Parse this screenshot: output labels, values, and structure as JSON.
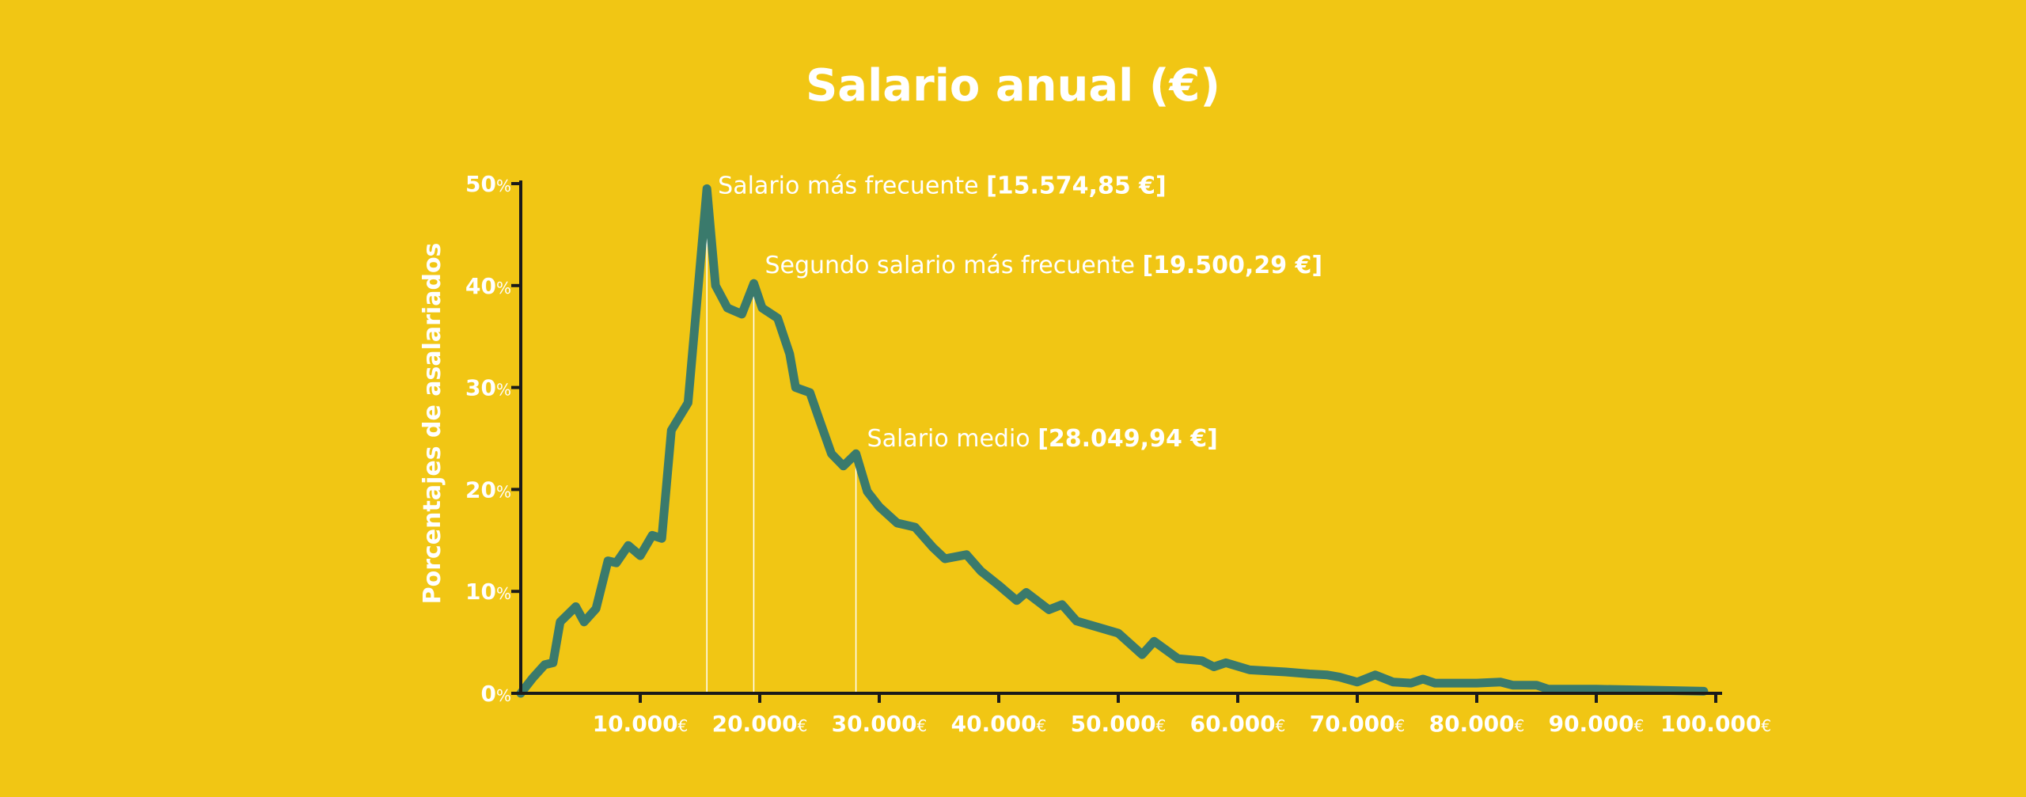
{
  "chart_data": {
    "type": "line",
    "title": "Salario anual (€)",
    "ylabel": "Porcentajes de asalariados",
    "xlabel": "",
    "xlim": [
      0,
      100000
    ],
    "ylim": [
      0,
      50
    ],
    "grid": false,
    "x_ticks": [
      {
        "value": 10000,
        "num": "10.000",
        "unit": "€"
      },
      {
        "value": 20000,
        "num": "20.000",
        "unit": "€"
      },
      {
        "value": 30000,
        "num": "30.000",
        "unit": "€"
      },
      {
        "value": 40000,
        "num": "40.000",
        "unit": "€"
      },
      {
        "value": 50000,
        "num": "50.000",
        "unit": "€"
      },
      {
        "value": 60000,
        "num": "60.000",
        "unit": "€"
      },
      {
        "value": 70000,
        "num": "70.000",
        "unit": "€"
      },
      {
        "value": 80000,
        "num": "80.000",
        "unit": "€"
      },
      {
        "value": 90000,
        "num": "90.000",
        "unit": "€"
      },
      {
        "value": 100000,
        "num": "100.000",
        "unit": "€"
      }
    ],
    "y_ticks": [
      {
        "value": 0,
        "num": "0",
        "unit": "%"
      },
      {
        "value": 10,
        "num": "10",
        "unit": "%"
      },
      {
        "value": 20,
        "num": "20",
        "unit": "%"
      },
      {
        "value": 30,
        "num": "30",
        "unit": "%"
      },
      {
        "value": 40,
        "num": "40",
        "unit": "%"
      },
      {
        "value": 50,
        "num": "50",
        "unit": "%"
      }
    ],
    "series": [
      {
        "color": "#3A7A6C",
        "x": [
          0,
          1000,
          2000,
          2700,
          3300,
          4600,
          5300,
          6300,
          7300,
          8000,
          9000,
          10000,
          11000,
          11800,
          12600,
          14000,
          15574,
          16300,
          17300,
          18500,
          19500,
          20200,
          21500,
          22500,
          23000,
          24200,
          25000,
          26000,
          27000,
          28050,
          29000,
          30000,
          31500,
          33000,
          34500,
          35500,
          37300,
          38500,
          40000,
          41500,
          42300,
          44200,
          45300,
          46500,
          50000,
          52000,
          53000,
          55000,
          57000,
          58000,
          59000,
          61000,
          64000,
          66000,
          67500,
          68500,
          70000,
          71500,
          73000,
          74500,
          75500,
          76500,
          80000,
          82000,
          83000,
          85000,
          86000,
          90000,
          95000,
          99000
        ],
        "y": [
          0,
          1.5,
          2.8,
          3.0,
          7.0,
          8.5,
          7.0,
          8.3,
          13.0,
          12.8,
          14.5,
          13.5,
          15.5,
          15.2,
          25.8,
          28.5,
          49.5,
          40.0,
          37.8,
          37.2,
          40.2,
          37.8,
          36.8,
          33.3,
          30.0,
          29.5,
          26.8,
          23.5,
          22.3,
          23.5,
          19.8,
          18.3,
          16.7,
          16.3,
          14.3,
          13.2,
          13.6,
          12.0,
          10.6,
          9.1,
          9.9,
          8.2,
          8.7,
          7.1,
          5.9,
          3.8,
          5.1,
          3.4,
          3.2,
          2.6,
          3.0,
          2.3,
          2.1,
          1.9,
          1.8,
          1.6,
          1.1,
          1.8,
          1.1,
          1.0,
          1.4,
          1.0,
          1.0,
          1.1,
          0.8,
          0.8,
          0.4,
          0.4,
          0.3,
          0.2
        ]
      }
    ],
    "annotations": [
      {
        "x": 15574.85,
        "label": "Salario más frecuente ",
        "value": "[15.574,85 €]",
        "label_y": 49.8
      },
      {
        "x": 19500.29,
        "label": "Segundo salario más frecuente ",
        "value": "[19.500,29 €]",
        "label_y": 42.0
      },
      {
        "x": 28049.94,
        "label": "Salario medio ",
        "value": "[28.049,94 €]",
        "label_y": 25.0
      }
    ]
  }
}
